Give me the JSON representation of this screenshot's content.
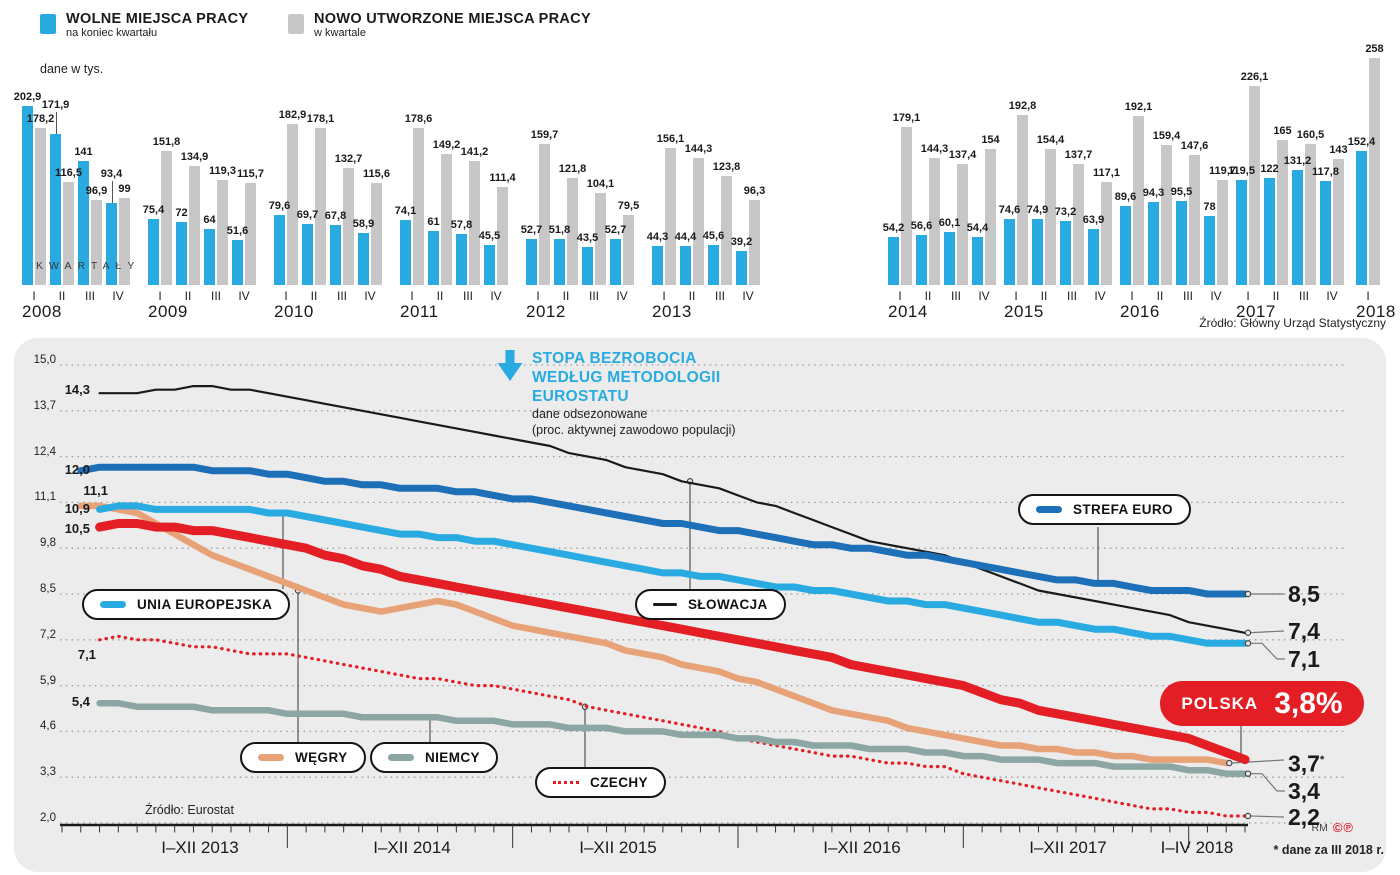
{
  "legend_top": {
    "items": [
      {
        "label": "WOLNE MIEJSCA PRACY",
        "sub": "na koniec kwartału",
        "color": "#29abe2"
      },
      {
        "label": "NOWO UTWORZONE MIEJSCA PRACY",
        "sub": "w kwartale",
        "color": "#c7c7c7"
      }
    ],
    "unit_note": "dane w tys."
  },
  "sources": {
    "top": "Źródło: Główny Urząd Statystyczny",
    "bottom": "Źródło: Eurostat"
  },
  "credits": {
    "rm": "RM",
    "marks": "©℗"
  },
  "line_title": {
    "lines": [
      "STOPA BEZROBOCIA",
      "WEDŁUG METODOLOGII",
      "EUROSTATU"
    ],
    "sub": [
      "dane odsezonowane",
      "(proc. aktywnej zawodowo populacji)"
    ]
  },
  "chart_data": [
    {
      "type": "bar",
      "title": "Wolne i nowo utworzone miejsca pracy",
      "unit": "tys.",
      "caption": "KWARTAŁY",
      "colors": {
        "wolne": "#29abe2",
        "nowe": "#c7c7c7"
      },
      "series_names": [
        "WOLNE MIEJSCA PRACY (na koniec kwartału)",
        "NOWO UTWORZONE MIEJSCA PRACY (w kwartale)"
      ],
      "groups": [
        {
          "year": "2008",
          "quarters": [
            "I",
            "II",
            "III",
            "IV"
          ],
          "wolne": [
            202.9,
            171.9,
            141,
            93.4
          ],
          "nowe": [
            178.2,
            116.5,
            96.9,
            99
          ],
          "raised_quarters": [
            1,
            3
          ]
        },
        {
          "year": "2009",
          "quarters": [
            "I",
            "II",
            "III",
            "IV"
          ],
          "wolne": [
            75.4,
            72,
            64,
            51.6
          ],
          "nowe": [
            151.8,
            134.9,
            119.3,
            115.7
          ]
        },
        {
          "year": "2010",
          "quarters": [
            "I",
            "II",
            "III",
            "IV"
          ],
          "wolne": [
            79.6,
            69.7,
            67.8,
            58.9
          ],
          "nowe": [
            182.9,
            178.1,
            132.7,
            115.6
          ]
        },
        {
          "year": "2011",
          "quarters": [
            "I",
            "II",
            "III",
            "IV"
          ],
          "wolne": [
            74.1,
            61,
            57.8,
            45.5
          ],
          "nowe": [
            178.6,
            149.2,
            141.2,
            111.4
          ]
        },
        {
          "year": "2012",
          "quarters": [
            "I",
            "II",
            "III",
            "IV"
          ],
          "wolne": [
            52.7,
            51.8,
            43.5,
            52.7
          ],
          "nowe": [
            159.7,
            121.8,
            104.1,
            79.5
          ]
        },
        {
          "year": "2013",
          "quarters": [
            "I",
            "II",
            "III",
            "IV"
          ],
          "wolne": [
            44.3,
            44.4,
            45.6,
            39.2
          ],
          "nowe": [
            156.1,
            144.3,
            123.8,
            96.3
          ]
        },
        {
          "year": "2014",
          "quarters": [
            "I",
            "II",
            "III",
            "IV"
          ],
          "wolne": [
            54.2,
            56.6,
            60.1,
            54.4
          ],
          "nowe": [
            179.1,
            144.3,
            137.4,
            154
          ]
        },
        {
          "year": "2015",
          "quarters": [
            "I",
            "II",
            "III",
            "IV"
          ],
          "wolne": [
            74.6,
            74.9,
            73.2,
            63.9
          ],
          "nowe": [
            192.8,
            154.4,
            137.7,
            117.1
          ]
        },
        {
          "year": "2016",
          "quarters": [
            "I",
            "II",
            "III",
            "IV"
          ],
          "wolne": [
            89.6,
            94.3,
            95.5,
            78
          ],
          "nowe": [
            192.1,
            159.4,
            147.6,
            119.7
          ]
        },
        {
          "year": "2017",
          "quarters": [
            "I",
            "II",
            "III",
            "IV"
          ],
          "wolne": [
            119.5,
            122,
            131.2,
            117.8
          ],
          "nowe": [
            226.1,
            165,
            160.5,
            143
          ]
        },
        {
          "year": "2018",
          "quarters": [
            "I"
          ],
          "wolne": [
            152.4
          ],
          "nowe": [
            258
          ]
        }
      ]
    },
    {
      "type": "line",
      "title": "STOPA BEZROBOCIA WEDŁUG METODOLOGII EUROSTATU",
      "subtitle": "dane odsezonowane (proc. aktywnej zawodowo populacji)",
      "ylim": [
        2.0,
        15.0
      ],
      "y_ticks": [
        "15,0",
        "13,7",
        "12,4",
        "11,1",
        "9,8",
        "8,5",
        "7,2",
        "5,9",
        "4,6",
        "3,3",
        "2,0"
      ],
      "x_labels": [
        "I–XII 2013",
        "I–XII 2014",
        "I–XII 2015",
        "I–XII 2016",
        "I–XII 2017",
        "I–IV 2018"
      ],
      "footnote": "* dane za III 2018 r.",
      "poland_badge": {
        "label": "POLSKA",
        "value": "3,8%"
      },
      "series": [
        {
          "id": "czechy",
          "name": "CZECHY",
          "color": "#e31e24",
          "style": "dotted",
          "width": 3.2,
          "start_label": "7,1",
          "end_label": "2,2",
          "values": [
            7.1,
            7.2,
            7.2,
            7.3,
            7.2,
            7.2,
            7.1,
            7.0,
            7.0,
            6.9,
            6.8,
            6.8,
            6.8,
            6.7,
            6.6,
            6.5,
            6.4,
            6.3,
            6.2,
            6.1,
            6.1,
            6.0,
            5.9,
            5.9,
            5.8,
            5.7,
            5.6,
            5.5,
            5.3,
            5.2,
            5.1,
            5.0,
            4.9,
            4.8,
            4.7,
            4.6,
            4.4,
            4.3,
            4.2,
            4.1,
            4.0,
            3.9,
            3.9,
            3.8,
            3.7,
            3.7,
            3.6,
            3.6,
            3.4,
            3.3,
            3.2,
            3.1,
            3.0,
            2.9,
            2.8,
            2.7,
            2.6,
            2.5,
            2.4,
            2.4,
            2.3,
            2.3,
            2.2,
            2.2
          ]
        },
        {
          "id": "niemcy",
          "name": "NIEMCY",
          "color": "#8ba6a3",
          "style": "solid",
          "width": 6.5,
          "start_label": "5,4",
          "end_label": "3,4",
          "values": [
            5.4,
            5.4,
            5.4,
            5.4,
            5.3,
            5.3,
            5.3,
            5.3,
            5.2,
            5.2,
            5.2,
            5.2,
            5.1,
            5.1,
            5.1,
            5.1,
            5.0,
            5.0,
            5.0,
            5.0,
            5.0,
            4.9,
            4.9,
            4.9,
            4.8,
            4.8,
            4.8,
            4.7,
            4.7,
            4.7,
            4.6,
            4.6,
            4.6,
            4.5,
            4.5,
            4.5,
            4.4,
            4.4,
            4.3,
            4.3,
            4.2,
            4.2,
            4.2,
            4.1,
            4.1,
            4.1,
            4.0,
            4.0,
            3.9,
            3.9,
            3.8,
            3.8,
            3.8,
            3.7,
            3.7,
            3.7,
            3.6,
            3.6,
            3.6,
            3.6,
            3.5,
            3.5,
            3.4,
            3.4
          ]
        },
        {
          "id": "wegry",
          "name": "WĘGRY",
          "color": "#e8a277",
          "style": "solid",
          "width": 6.5,
          "start_label": "11,1",
          "end_label": "3,7",
          "end_label_sup": "*",
          "values": [
            11.1,
            11.0,
            11.0,
            10.9,
            10.8,
            10.5,
            10.2,
            9.9,
            9.6,
            9.4,
            9.2,
            9.0,
            8.8,
            8.6,
            8.4,
            8.2,
            8.1,
            8.0,
            8.1,
            8.2,
            8.3,
            8.2,
            8.0,
            7.8,
            7.6,
            7.5,
            7.4,
            7.3,
            7.2,
            7.1,
            6.9,
            6.8,
            6.7,
            6.5,
            6.4,
            6.3,
            6.1,
            6.0,
            5.8,
            5.6,
            5.4,
            5.2,
            5.1,
            5.0,
            4.9,
            4.7,
            4.6,
            4.5,
            4.4,
            4.3,
            4.2,
            4.2,
            4.1,
            4.1,
            4.0,
            4.0,
            3.9,
            3.9,
            3.8,
            3.8,
            3.8,
            3.8,
            3.7
          ]
        },
        {
          "id": "slowacja",
          "name": "SŁOWACJA",
          "color": "#1a1a1a",
          "style": "solid",
          "width": 2.2,
          "start_label": "14,3",
          "end_label": "7,4",
          "values": [
            14.3,
            14.3,
            14.2,
            14.2,
            14.2,
            14.3,
            14.3,
            14.4,
            14.4,
            14.3,
            14.3,
            14.2,
            14.1,
            14.0,
            13.9,
            13.8,
            13.7,
            13.6,
            13.5,
            13.4,
            13.3,
            13.2,
            13.1,
            13.0,
            12.9,
            12.8,
            12.7,
            12.5,
            12.4,
            12.3,
            12.1,
            12.0,
            11.9,
            11.7,
            11.6,
            11.5,
            11.3,
            11.1,
            11.0,
            10.8,
            10.6,
            10.4,
            10.2,
            10.0,
            9.9,
            9.8,
            9.7,
            9.6,
            9.4,
            9.2,
            9.0,
            8.8,
            8.6,
            8.5,
            8.4,
            8.3,
            8.2,
            8.1,
            8.0,
            7.9,
            7.7,
            7.6,
            7.5,
            7.4
          ]
        },
        {
          "id": "strefa_euro",
          "name": "STREFA EURO",
          "color": "#1d70b7",
          "style": "solid",
          "width": 7,
          "start_label": "12,0",
          "end_label": "8,5",
          "values": [
            12.0,
            12.0,
            12.1,
            12.1,
            12.1,
            12.1,
            12.1,
            12.1,
            12.0,
            12.0,
            12.0,
            11.9,
            11.9,
            11.8,
            11.7,
            11.7,
            11.6,
            11.6,
            11.5,
            11.5,
            11.5,
            11.4,
            11.4,
            11.3,
            11.2,
            11.2,
            11.1,
            11.0,
            10.9,
            10.8,
            10.7,
            10.6,
            10.5,
            10.5,
            10.4,
            10.3,
            10.3,
            10.2,
            10.1,
            10.0,
            9.9,
            9.9,
            9.8,
            9.8,
            9.7,
            9.6,
            9.6,
            9.5,
            9.4,
            9.3,
            9.2,
            9.1,
            9.0,
            8.9,
            8.9,
            8.8,
            8.8,
            8.7,
            8.6,
            8.6,
            8.6,
            8.5,
            8.5,
            8.5
          ]
        },
        {
          "id": "unia",
          "name": "UNIA EUROPEJSKA",
          "color": "#29abe2",
          "style": "solid",
          "width": 7,
          "start_label": "10,9",
          "end_label": "7,1",
          "values": [
            10.9,
            10.9,
            10.9,
            11.0,
            11.0,
            10.9,
            10.9,
            10.9,
            10.9,
            10.9,
            10.9,
            10.8,
            10.8,
            10.7,
            10.6,
            10.5,
            10.4,
            10.3,
            10.2,
            10.2,
            10.1,
            10.1,
            10.0,
            10.0,
            9.9,
            9.8,
            9.7,
            9.6,
            9.5,
            9.4,
            9.3,
            9.2,
            9.1,
            9.1,
            9.0,
            9.0,
            8.9,
            8.8,
            8.7,
            8.7,
            8.6,
            8.6,
            8.5,
            8.4,
            8.3,
            8.3,
            8.2,
            8.2,
            8.1,
            8.0,
            7.9,
            7.8,
            7.7,
            7.7,
            7.6,
            7.5,
            7.5,
            7.4,
            7.3,
            7.3,
            7.2,
            7.1,
            7.1,
            7.1
          ]
        },
        {
          "id": "polska",
          "name": "POLSKA",
          "color": "#e31e24",
          "style": "solid",
          "width": 9,
          "start_label": "10,5",
          "end_label": "3,8",
          "values": [
            10.5,
            10.5,
            10.4,
            10.5,
            10.5,
            10.4,
            10.4,
            10.3,
            10.3,
            10.2,
            10.1,
            10.0,
            9.9,
            9.8,
            9.6,
            9.5,
            9.3,
            9.2,
            9.0,
            8.9,
            8.8,
            8.7,
            8.6,
            8.5,
            8.4,
            8.3,
            8.2,
            8.1,
            8.0,
            7.9,
            7.8,
            7.7,
            7.6,
            7.5,
            7.4,
            7.3,
            7.2,
            7.1,
            7.0,
            6.9,
            6.8,
            6.7,
            6.5,
            6.4,
            6.3,
            6.2,
            6.1,
            6.0,
            5.9,
            5.7,
            5.5,
            5.4,
            5.2,
            5.1,
            5.0,
            4.9,
            4.8,
            4.7,
            4.6,
            4.5,
            4.4,
            4.2,
            4.0,
            3.8
          ]
        }
      ]
    }
  ]
}
